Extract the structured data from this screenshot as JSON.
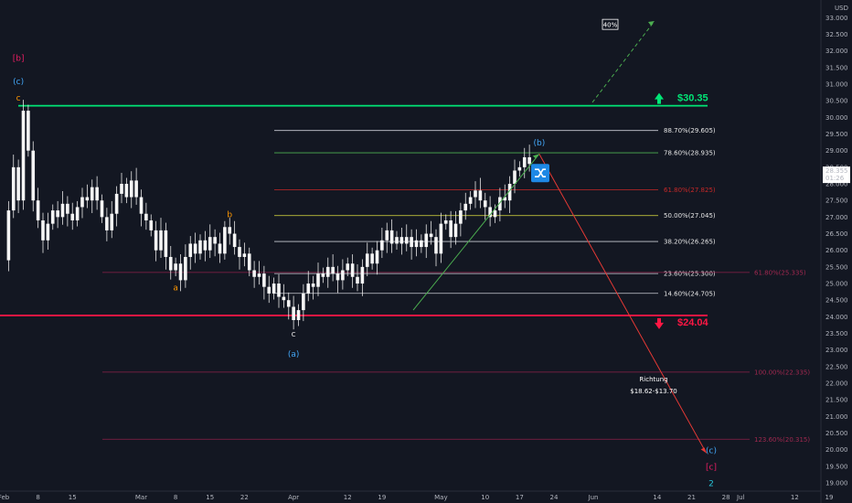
{
  "chart_data": {
    "type": "candlestick",
    "currency": "USD",
    "ylim": [
      18.6,
      33.4
    ],
    "y_ticks": [
      "19.000",
      "19.500",
      "20.000",
      "20.500",
      "21.000",
      "21.500",
      "22.000",
      "22.500",
      "23.000",
      "23.500",
      "24.000",
      "24.500",
      "25.000",
      "25.500",
      "26.000",
      "26.500",
      "27.000",
      "27.500",
      "28.000",
      "28.500",
      "29.000",
      "29.500",
      "30.000",
      "30.500",
      "31.000",
      "31.500",
      "32.000",
      "32.500",
      "33.000"
    ],
    "x_ticks": [
      {
        "label": "Feb",
        "day": 0
      },
      {
        "label": "8",
        "day": 7
      },
      {
        "label": "15",
        "day": 14
      },
      {
        "label": "Mar",
        "day": 28
      },
      {
        "label": "8",
        "day": 35
      },
      {
        "label": "15",
        "day": 42
      },
      {
        "label": "22",
        "day": 49
      },
      {
        "label": "Apr",
        "day": 59
      },
      {
        "label": "12",
        "day": 70
      },
      {
        "label": "19",
        "day": 77
      },
      {
        "label": "May",
        "day": 89
      },
      {
        "label": "10",
        "day": 98
      },
      {
        "label": "17",
        "day": 105
      },
      {
        "label": "24",
        "day": 112
      },
      {
        "label": "Jun",
        "day": 120
      },
      {
        "label": "14",
        "day": 133
      },
      {
        "label": "21",
        "day": 140
      },
      {
        "label": "28",
        "day": 147
      },
      {
        "label": "Jul",
        "day": 150
      },
      {
        "label": "12",
        "day": 161
      },
      {
        "label": "19",
        "day": 168
      }
    ],
    "price_close_path": [
      [
        0,
        25.7
      ],
      [
        1,
        27.2
      ],
      [
        2,
        28.5
      ],
      [
        3,
        27.5
      ],
      [
        4,
        30.2
      ],
      [
        5,
        29.0
      ],
      [
        6,
        27.5
      ],
      [
        7,
        26.9
      ],
      [
        8,
        26.3
      ],
      [
        9,
        26.8
      ],
      [
        10,
        27.2
      ],
      [
        11,
        27.0
      ],
      [
        12,
        27.4
      ],
      [
        13,
        27.1
      ],
      [
        14,
        26.9
      ],
      [
        15,
        27.3
      ],
      [
        16,
        27.6
      ],
      [
        17,
        27.5
      ],
      [
        18,
        27.9
      ],
      [
        19,
        27.5
      ],
      [
        20,
        27.0
      ],
      [
        21,
        26.6
      ],
      [
        22,
        27.1
      ],
      [
        23,
        27.7
      ],
      [
        24,
        28.0
      ],
      [
        25,
        27.6
      ],
      [
        26,
        28.1
      ],
      [
        27,
        27.6
      ],
      [
        28,
        27.1
      ],
      [
        29,
        26.9
      ],
      [
        30,
        26.6
      ],
      [
        31,
        26.0
      ],
      [
        32,
        26.6
      ],
      [
        33,
        25.8
      ],
      [
        34,
        25.4
      ],
      [
        35,
        25.6
      ],
      [
        36,
        25.1
      ],
      [
        37,
        25.8
      ],
      [
        38,
        26.2
      ],
      [
        39,
        25.9
      ],
      [
        40,
        26.3
      ],
      [
        41,
        26.0
      ],
      [
        42,
        26.4
      ],
      [
        43,
        26.2
      ],
      [
        44,
        25.9
      ],
      [
        45,
        26.7
      ],
      [
        46,
        26.5
      ],
      [
        47,
        26.1
      ],
      [
        48,
        25.8
      ],
      [
        49,
        25.9
      ],
      [
        50,
        25.4
      ],
      [
        51,
        25.2
      ],
      [
        52,
        25.3
      ],
      [
        53,
        24.9
      ],
      [
        54,
        24.7
      ],
      [
        55,
        25.0
      ],
      [
        56,
        24.6
      ],
      [
        57,
        24.5
      ],
      [
        58,
        24.3
      ],
      [
        59,
        23.9
      ],
      [
        60,
        24.2
      ],
      [
        61,
        24.7
      ],
      [
        62,
        25.0
      ],
      [
        63,
        24.9
      ],
      [
        64,
        25.3
      ],
      [
        65,
        25.2
      ],
      [
        66,
        25.5
      ],
      [
        67,
        25.3
      ],
      [
        68,
        25.1
      ],
      [
        69,
        25.4
      ],
      [
        70,
        25.6
      ],
      [
        71,
        25.2
      ],
      [
        72,
        25.0
      ],
      [
        73,
        25.5
      ],
      [
        74,
        25.9
      ],
      [
        75,
        25.6
      ],
      [
        76,
        26.0
      ],
      [
        77,
        26.3
      ],
      [
        78,
        26.6
      ],
      [
        79,
        26.2
      ],
      [
        80,
        26.4
      ],
      [
        81,
        26.2
      ],
      [
        82,
        26.4
      ],
      [
        83,
        26.1
      ],
      [
        84,
        26.3
      ],
      [
        85,
        26.1
      ],
      [
        86,
        26.5
      ],
      [
        87,
        26.4
      ],
      [
        88,
        25.9
      ],
      [
        89,
        26.8
      ],
      [
        90,
        26.9
      ],
      [
        91,
        26.4
      ],
      [
        92,
        26.8
      ],
      [
        93,
        27.2
      ],
      [
        94,
        27.4
      ],
      [
        95,
        27.6
      ],
      [
        96,
        27.8
      ],
      [
        97,
        27.5
      ],
      [
        98,
        27.3
      ],
      [
        99,
        27.0
      ],
      [
        100,
        27.2
      ],
      [
        101,
        27.6
      ],
      [
        102,
        27.5
      ],
      [
        103,
        28.0
      ],
      [
        104,
        28.4
      ],
      [
        105,
        28.5
      ],
      [
        106,
        28.8
      ],
      [
        107,
        28.6
      ]
    ],
    "fib_levels": [
      {
        "label": "88.70%(29.605)",
        "value": 29.605,
        "color": "#c9ccd4"
      },
      {
        "label": "78.60%(28.935)",
        "value": 28.935,
        "color": "#4caf50"
      },
      {
        "label": "61.80%(27.825)",
        "value": 27.825,
        "color": "#c62828"
      },
      {
        "label": "50.00%(27.045)",
        "value": 27.045,
        "color": "#e0e040"
      },
      {
        "label": "38.20%(26.265)",
        "value": 26.265,
        "color": "#c9ccd4"
      },
      {
        "label": "23.60%(25.300)",
        "value": 25.3,
        "color": "#c9ccd4"
      },
      {
        "label": "14.60%(24.705)",
        "value": 24.705,
        "color": "#c9ccd4"
      }
    ],
    "ext_levels": [
      {
        "label": "61.80%(25.335)",
        "value": 25.335,
        "color": "#8c2048"
      },
      {
        "label": "100.00%(22.335)",
        "value": 22.335,
        "color": "#8c2048"
      },
      {
        "label": "123.60%(20.315)",
        "value": 20.315,
        "color": "#8c2048"
      }
    ],
    "resistance": {
      "label": "$30.35",
      "value": 30.35,
      "color": "#00e676"
    },
    "support": {
      "label": "$24.04",
      "value": 24.04,
      "color": "#ff1744"
    },
    "current_price": {
      "value": "28.355",
      "time": "01:26"
    },
    "wave_labels": [
      {
        "text": "[b]",
        "day": 3,
        "price": 31.7,
        "color": "#e91e63"
      },
      {
        "text": "(c)",
        "day": 3,
        "price": 31.0,
        "color": "#42a5f5"
      },
      {
        "text": "c",
        "day": 3,
        "price": 30.5,
        "color": "#ff9800"
      },
      {
        "text": "a",
        "day": 35,
        "price": 24.8,
        "color": "#ff9800"
      },
      {
        "text": "b",
        "day": 46,
        "price": 27.0,
        "color": "#ff9800"
      },
      {
        "text": "c",
        "day": 59,
        "price": 23.4,
        "color": "#e0e0e0"
      },
      {
        "text": "(a)",
        "day": 59,
        "price": 22.8,
        "color": "#42a5f5"
      },
      {
        "text": "(b)",
        "day": 109,
        "price": 29.15,
        "color": "#42a5f5"
      },
      {
        "text": "(c)",
        "day": 144,
        "price": 19.9,
        "color": "#42a5f5"
      },
      {
        "text": "[c]",
        "day": 144,
        "price": 19.4,
        "color": "#e91e63"
      },
      {
        "text": "2",
        "day": 144,
        "price": 18.9,
        "color": "#26c6da"
      }
    ],
    "projection_pct": "40%",
    "target_title": "Richtung",
    "target_range": "$18.62-$13.70"
  }
}
